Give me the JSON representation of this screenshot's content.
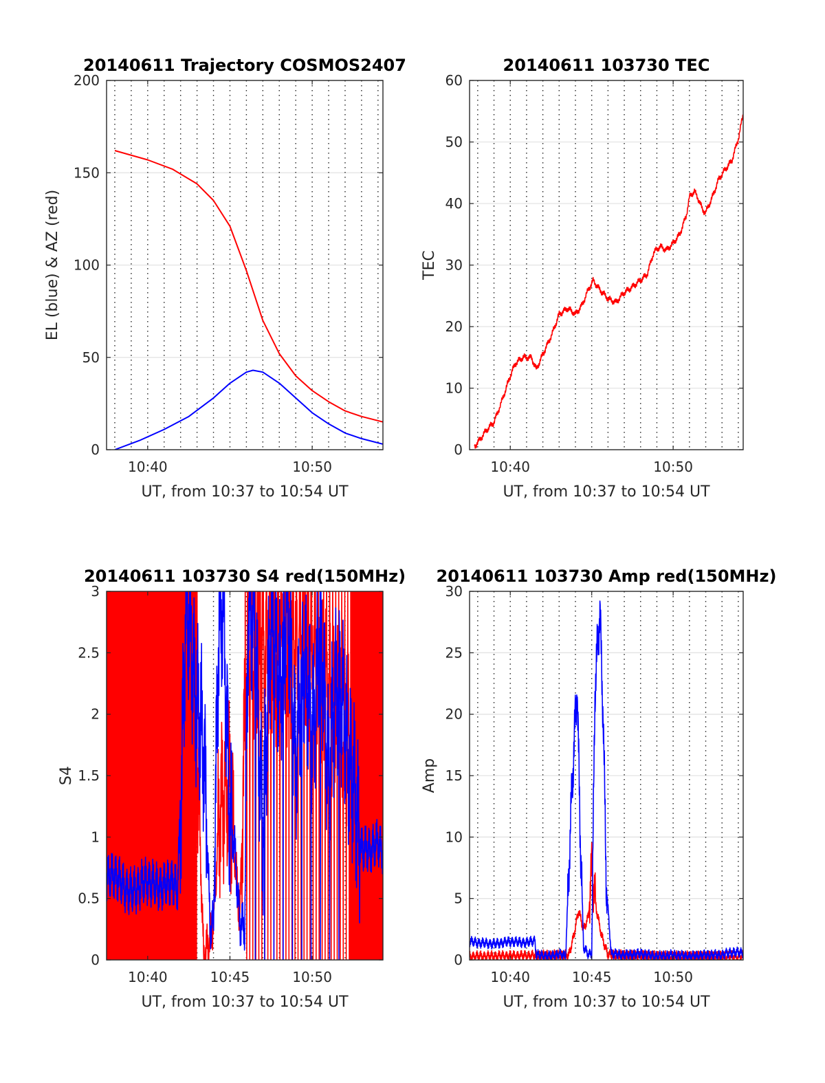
{
  "chart_data": [
    {
      "type": "line",
      "title": "20140611 Trajectory COSMOS2407",
      "xlabel": "UT, from 10:37 to 10:54 UT",
      "ylabel": "EL (blue) & AZ (red)",
      "xlim": [
        37.5,
        54.3
      ],
      "ylim": [
        0,
        200
      ],
      "yticks": [
        0,
        50,
        100,
        150,
        200
      ],
      "ytick_labels": [
        "0",
        "50",
        "100",
        "150",
        "200"
      ],
      "xticks": [
        40,
        50
      ],
      "xtick_labels": [
        "10:40",
        "10:50"
      ],
      "grid": "dotted vertical each minute, light horizontal at y ticks",
      "series": [
        {
          "color": "#ff0000",
          "x": [
            38.0,
            40.0,
            41.5,
            43.0,
            44.0,
            45.0,
            46.0,
            47.0,
            48.0,
            49.0,
            50.0,
            51.0,
            52.0,
            53.0,
            54.3
          ],
          "y": [
            162,
            157,
            152,
            144,
            135,
            121,
            97,
            70,
            52,
            40,
            32,
            26,
            21,
            18,
            15
          ]
        },
        {
          "color": "#0000ff",
          "x": [
            38.0,
            39.5,
            41.0,
            42.5,
            44.0,
            45.0,
            46.0,
            46.4,
            47.0,
            48.0,
            49.0,
            50.0,
            51.0,
            52.0,
            53.0,
            54.3
          ],
          "y": [
            0,
            5,
            11,
            18,
            28,
            36,
            42,
            43,
            42,
            36,
            28,
            20,
            14,
            9,
            6,
            3
          ]
        }
      ]
    },
    {
      "type": "line",
      "title": "20140611 103730 TEC",
      "xlabel": "UT, from 10:37 to 10:54 UT",
      "ylabel": "TEC",
      "xlim": [
        37.5,
        54.3
      ],
      "ylim": [
        0,
        60
      ],
      "yticks": [
        0,
        10,
        20,
        30,
        40,
        50,
        60
      ],
      "ytick_labels": [
        "0",
        "10",
        "20",
        "30",
        "40",
        "50",
        "60"
      ],
      "xticks": [
        40,
        50
      ],
      "xtick_labels": [
        "10:40",
        "10:50"
      ],
      "grid": "dotted vertical each minute, light horizontal at y ticks",
      "series": [
        {
          "color": "#ff0000",
          "x": [
            37.8,
            38.5,
            39.0,
            39.5,
            40.0,
            40.3,
            40.8,
            41.3,
            41.6,
            42.0,
            42.6,
            43.0,
            43.5,
            44.0,
            44.4,
            44.8,
            45.1,
            45.5,
            46.0,
            46.5,
            47.0,
            47.5,
            48.0,
            48.4,
            48.8,
            49.2,
            49.6,
            50.0,
            50.4,
            50.8,
            51.0,
            51.3,
            51.6,
            51.8,
            52.0,
            52.4,
            52.8,
            53.2,
            53.6,
            54.0,
            54.3
          ],
          "y": [
            0.5,
            3.0,
            4.5,
            8.0,
            12.0,
            14.0,
            15.0,
            15.0,
            13.0,
            15.5,
            19.0,
            22.0,
            23.0,
            22.0,
            23.5,
            26.0,
            27.5,
            26.0,
            24.5,
            24.0,
            25.5,
            26.5,
            27.5,
            28.5,
            32.0,
            33.0,
            32.5,
            33.5,
            35.0,
            38.0,
            41.0,
            42.0,
            40.5,
            39.0,
            38.5,
            41.0,
            44.0,
            45.5,
            47.0,
            50.5,
            54.5
          ]
        }
      ]
    },
    {
      "type": "line",
      "title": "20140611 103730 S4 red(150MHz)",
      "xlabel": "UT, from 10:37 to 10:54 UT",
      "ylabel": "S4",
      "xlim": [
        37.5,
        54.3
      ],
      "ylim": [
        0,
        3
      ],
      "yticks": [
        0,
        0.5,
        1,
        1.5,
        2,
        2.5,
        3
      ],
      "ytick_labels": [
        "0",
        "0.5",
        "1",
        "1.5",
        "2",
        "2.5",
        "3"
      ],
      "xticks": [
        40,
        45,
        50
      ],
      "xtick_labels": [
        "10:40",
        "10:45",
        "10:50"
      ],
      "grid": "dotted vertical each minute, light horizontal at y ticks",
      "series": [
        {
          "color": "#ff0000",
          "x": [
            37.5,
            43.0,
            43.4,
            44.0,
            44.4,
            45.0,
            45.6,
            46.0,
            50.0,
            52.0,
            54.3
          ],
          "y": [
            1.5,
            1.8,
            0.0,
            0.3,
            1.3,
            1.4,
            0.3,
            2.5,
            2.5,
            1.8,
            0.9
          ]
        },
        {
          "color": "#0000ff",
          "x": [
            37.5,
            38.0,
            38.5,
            39.0,
            39.5,
            40.0,
            40.5,
            41.0,
            41.5,
            41.8,
            42.0,
            42.3,
            42.6,
            43.0,
            43.4,
            43.8,
            44.0,
            44.3,
            44.6,
            45.0,
            45.3,
            45.6,
            45.9,
            46.1,
            46.5,
            47.0,
            47.5,
            48.0,
            48.5,
            49.0,
            49.5,
            50.0,
            50.5,
            51.0,
            51.5,
            52.0,
            52.5,
            53.0,
            53.5,
            54.0,
            54.3
          ],
          "y": [
            0.65,
            0.7,
            0.6,
            0.55,
            0.6,
            0.65,
            0.6,
            0.6,
            0.65,
            0.55,
            1.2,
            2.8,
            2.7,
            2.0,
            1.8,
            0.25,
            0.3,
            2.6,
            2.9,
            1.1,
            0.9,
            0.3,
            0.25,
            2.9,
            2.7,
            1.0,
            2.8,
            2.2,
            2.9,
            1.6,
            2.5,
            1.8,
            2.7,
            1.5,
            2.3,
            1.9,
            1.4,
            0.9,
            0.9,
            0.95,
            0.9
          ]
        }
      ]
    },
    {
      "type": "line",
      "title": "20140611 103730 Amp red(150MHz)",
      "xlabel": "UT, from 10:37 to 10:54 UT",
      "ylabel": "Amp",
      "xlim": [
        37.5,
        54.3
      ],
      "ylim": [
        0,
        30
      ],
      "yticks": [
        0,
        5,
        10,
        15,
        20,
        25,
        30
      ],
      "ytick_labels": [
        "0",
        "5",
        "10",
        "15",
        "20",
        "25",
        "30"
      ],
      "xticks": [
        40,
        45,
        50
      ],
      "xtick_labels": [
        "10:40",
        "10:45",
        "10:50"
      ],
      "grid": "dotted vertical each minute, light horizontal at y ticks",
      "series": [
        {
          "color": "#ff0000",
          "x": [
            37.5,
            43.6,
            43.9,
            44.2,
            44.5,
            44.8,
            45.0,
            45.3,
            45.6,
            46.0,
            50.0,
            54.3
          ],
          "y": [
            0.3,
            0.4,
            2.0,
            4.0,
            2.5,
            3.5,
            7.5,
            4.0,
            2.0,
            0.4,
            0.3,
            0.3
          ]
        },
        {
          "color": "#0000ff",
          "x": [
            37.5,
            38.0,
            39.0,
            40.0,
            41.0,
            41.5,
            41.6,
            42.5,
            43.0,
            43.4,
            43.7,
            43.9,
            44.1,
            44.3,
            44.5,
            44.8,
            45.0,
            45.2,
            45.4,
            45.5,
            45.7,
            45.9,
            46.2,
            47.0,
            48.0,
            49.0,
            50.0,
            51.0,
            52.0,
            53.0,
            53.5,
            54.3
          ],
          "y": [
            1.5,
            1.4,
            1.3,
            1.5,
            1.4,
            1.6,
            0.4,
            0.3,
            0.5,
            0.3,
            11.0,
            17.0,
            22.5,
            10.0,
            1.0,
            0.5,
            0.5,
            22.0,
            26.5,
            28.5,
            20.0,
            6.0,
            0.5,
            0.4,
            0.5,
            0.3,
            0.4,
            0.3,
            0.4,
            0.4,
            0.6,
            0.6
          ]
        }
      ]
    }
  ]
}
